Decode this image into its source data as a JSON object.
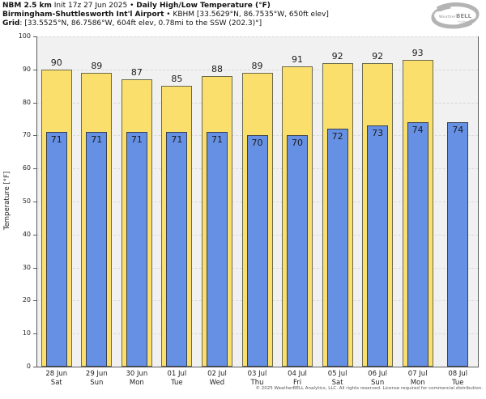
{
  "header": {
    "line1": {
      "model": "NBM 2.5 km",
      "init": " Init 17z 27 Jun 2025 • ",
      "product": "Daily High/Low Temperature (°F)"
    },
    "line2": {
      "station": "Birmingham-Shuttlesworth Int'l Airport",
      "details": " • KBHM [33.5629°N, 86.7535°W, 650ft elev]"
    },
    "line3": {
      "label": "Grid",
      "details": ": [33.5525°N, 86.7586°W, 604ft elev, 0.78mi to the SSW (202.3)°]"
    }
  },
  "logo": {
    "brand_weather": "Weather",
    "brand_bell": "BELL",
    "brand_sub": "Analytics LLC"
  },
  "chart_data": {
    "type": "bar",
    "title": "Daily High/Low Temperature (°F)",
    "xlabel": "",
    "ylabel": "Temperature [°F]",
    "ylim": [
      0,
      100
    ],
    "ytick_step": 10,
    "grid": "horizontal-dashed",
    "legend_position": "none",
    "categories": [
      {
        "date": "28 Jun",
        "day": "Sat"
      },
      {
        "date": "29 Jun",
        "day": "Sun"
      },
      {
        "date": "30 Jun",
        "day": "Mon"
      },
      {
        "date": "01 Jul",
        "day": "Tue"
      },
      {
        "date": "02 Jul",
        "day": "Wed"
      },
      {
        "date": "03 Jul",
        "day": "Thu"
      },
      {
        "date": "04 Jul",
        "day": "Fri"
      },
      {
        "date": "05 Jul",
        "day": "Sat"
      },
      {
        "date": "06 Jul",
        "day": "Sun"
      },
      {
        "date": "07 Jul",
        "day": "Mon"
      },
      {
        "date": "08 Jul",
        "day": "Tue"
      }
    ],
    "series": [
      {
        "name": "Daily High",
        "color": "#fbdf6d",
        "values": [
          90,
          89,
          87,
          85,
          88,
          89,
          91,
          92,
          92,
          93,
          null
        ]
      },
      {
        "name": "Daily Low",
        "color": "#6590e4",
        "values": [
          71,
          71,
          71,
          71,
          71,
          70,
          70,
          72,
          73,
          74,
          74
        ]
      }
    ]
  },
  "footer": {
    "copyright": "© 2025 WeatherBELL Analytics, LLC. All rights reserved. License required for commercial distribution."
  },
  "colors": {
    "high_fill": "#fbdf6d",
    "high_border": "#6a6a4d",
    "low_fill": "#6590e4",
    "low_border": "#38414f",
    "plot_bg": "#f1f1f1",
    "grid_line": "#d9d9d9",
    "axis": "#5a5a5a"
  }
}
